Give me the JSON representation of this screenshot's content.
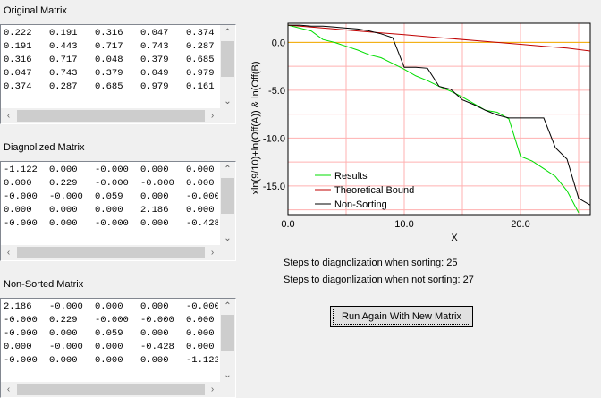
{
  "original": {
    "title": "Original Matrix",
    "rows": [
      [
        "0.222",
        "0.191",
        "0.316",
        "0.047",
        "0.374"
      ],
      [
        "0.191",
        "0.443",
        "0.717",
        "0.743",
        "0.287"
      ],
      [
        "0.316",
        "0.717",
        "0.048",
        "0.379",
        "0.685"
      ],
      [
        "0.047",
        "0.743",
        "0.379",
        "0.049",
        "0.979"
      ],
      [
        "0.374",
        "0.287",
        "0.685",
        "0.979",
        "0.161"
      ]
    ]
  },
  "diagonalized": {
    "title": "Diagnolized Matrix",
    "rows": [
      [
        "-1.122",
        "0.000",
        "-0.000",
        "0.000",
        "0.000"
      ],
      [
        "0.000",
        "0.229",
        "-0.000",
        "-0.000",
        "0.000"
      ],
      [
        "-0.000",
        "-0.000",
        "0.059",
        "0.000",
        "-0.000"
      ],
      [
        "0.000",
        "0.000",
        "0.000",
        "2.186",
        "0.000"
      ],
      [
        "-0.000",
        "0.000",
        "-0.000",
        "0.000",
        "-0.428"
      ]
    ]
  },
  "nonsorted": {
    "title": "Non-Sorted Matrix",
    "rows": [
      [
        "2.186",
        "-0.000",
        "0.000",
        "0.000",
        "-0.000"
      ],
      [
        "-0.000",
        "0.229",
        "-0.000",
        "-0.000",
        "0.000"
      ],
      [
        "-0.000",
        "0.000",
        "0.059",
        "0.000",
        "0.000"
      ],
      [
        "0.000",
        "-0.000",
        "0.000",
        "-0.428",
        "0.000"
      ],
      [
        "-0.000",
        "0.000",
        "0.000",
        "0.000",
        "-1.122"
      ]
    ]
  },
  "status": {
    "sorting": "Steps to diagnolization when sorting: 25",
    "not_sorting": "Steps to diagonlization when not sorting: 27"
  },
  "run_button_label": "Run Again With New Matrix",
  "chart_data": {
    "type": "line",
    "xlabel": "X",
    "ylabel": "x ln(9/10)+ln(Off(A)) & ln(Off(B))",
    "ylabel_display": "xln(9/10)+ln(Off(A)) & ln(Off(B)",
    "xlim": [
      0,
      26
    ],
    "ylim": [
      -18,
      2
    ],
    "x_ticks": [
      "0.0",
      "10.0",
      "20.0"
    ],
    "x_tick_values": [
      0,
      10,
      20
    ],
    "y_ticks": [
      "0.0",
      "-5.0",
      "-10.0",
      "-15.0"
    ],
    "y_tick_values": [
      0,
      -5,
      -10,
      -15
    ],
    "grid": true,
    "grid_x": [
      0,
      5,
      10,
      15,
      20,
      25
    ],
    "grid_y": [
      0,
      -2.5,
      -5,
      -7.5,
      -10,
      -12.5,
      -15,
      -17.5
    ],
    "reference_line_y": 0,
    "legend_position": "bottom-left",
    "series": [
      {
        "name": "Results",
        "color": "#00dd00",
        "x": [
          0,
          1,
          2,
          3,
          4,
          5,
          6,
          7,
          8,
          9,
          10,
          11,
          12,
          13,
          14,
          15,
          16,
          17,
          18,
          19,
          20,
          21,
          22,
          23,
          24,
          25
        ],
        "y": [
          1.8,
          1.5,
          1.2,
          0.3,
          0.0,
          -0.4,
          -0.8,
          -1.3,
          -1.6,
          -2.2,
          -2.8,
          -3.5,
          -4.0,
          -4.6,
          -5.1,
          -5.7,
          -6.4,
          -7.1,
          -7.3,
          -8.0,
          -11.9,
          -12.4,
          -13.2,
          -14.0,
          -15.5,
          -17.8
        ]
      },
      {
        "name": "Theoretical Bound",
        "color": "#c00000",
        "x": [
          0,
          2,
          4,
          6,
          8,
          10,
          12,
          14,
          16,
          18,
          20,
          22,
          24,
          26
        ],
        "y": [
          1.8,
          1.6,
          1.4,
          1.2,
          1.0,
          0.8,
          0.6,
          0.4,
          0.2,
          0.0,
          -0.2,
          -0.4,
          -0.6,
          -0.9
        ]
      },
      {
        "name": "Non-Sorting",
        "color": "#000000",
        "x": [
          0,
          1,
          2,
          3,
          4,
          5,
          6,
          7,
          8,
          9,
          10,
          11,
          12,
          13,
          14,
          15,
          16,
          17,
          18,
          19,
          20,
          21,
          22,
          23,
          24,
          25,
          26
        ],
        "y": [
          1.8,
          1.8,
          1.7,
          1.7,
          1.6,
          1.5,
          1.4,
          1.2,
          0.9,
          0.5,
          -2.6,
          -2.6,
          -2.7,
          -4.6,
          -4.9,
          -6.0,
          -6.5,
          -7.1,
          -7.6,
          -7.9,
          -7.9,
          -7.9,
          -7.9,
          -11.0,
          -12.2,
          -16.3,
          -17.0
        ]
      }
    ]
  }
}
